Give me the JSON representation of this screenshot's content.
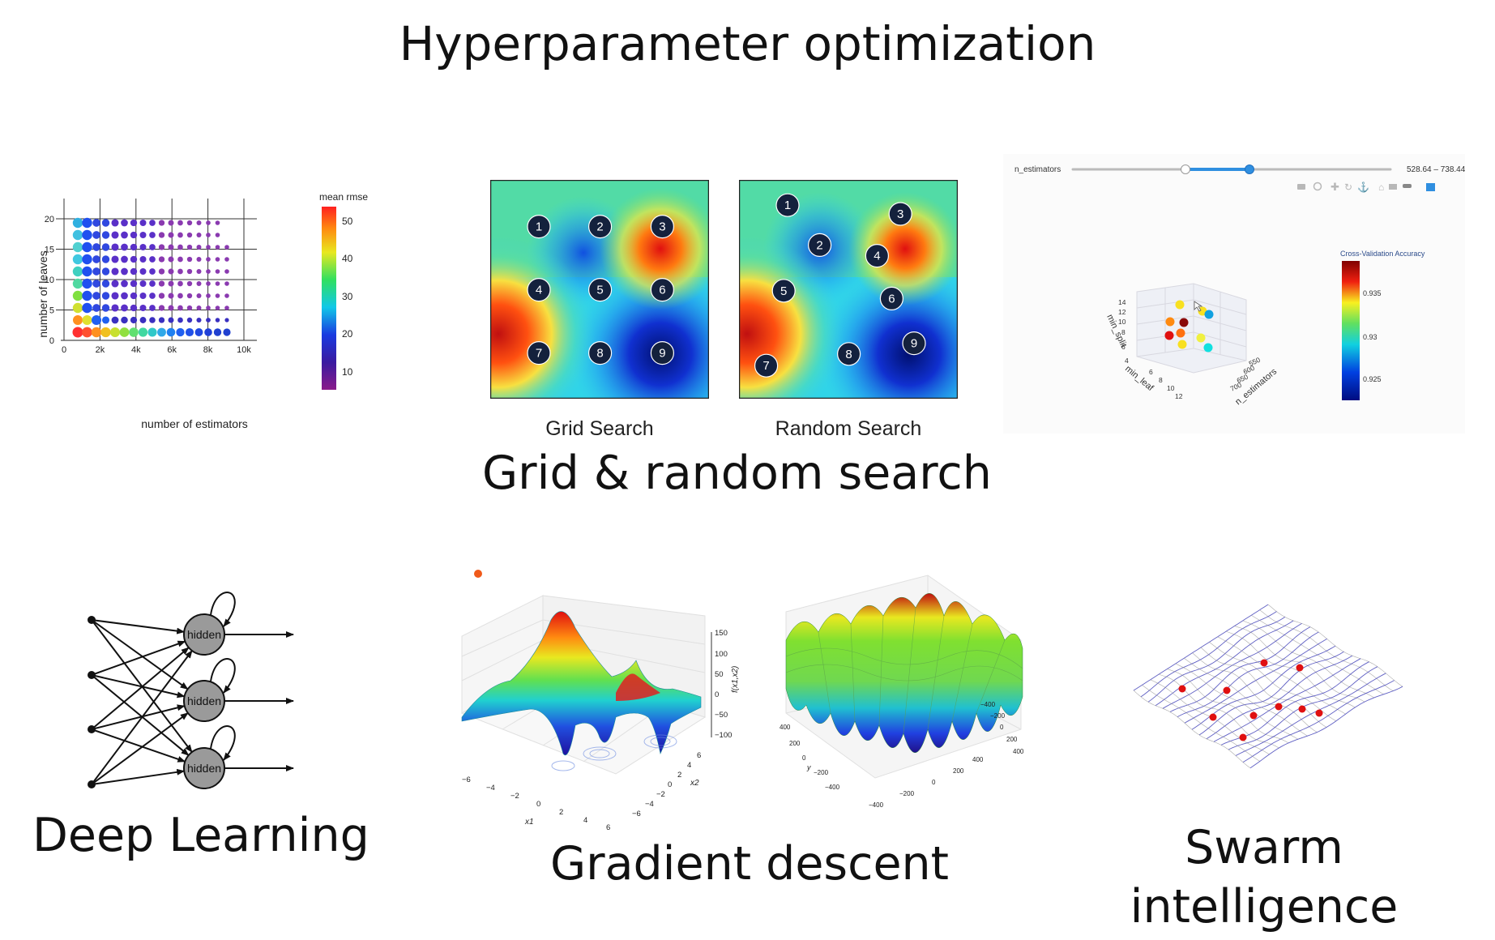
{
  "title": "Hyperparameter optimization",
  "sections": {
    "grid_random": {
      "caption": "Grid & random search"
    },
    "deep_learning": {
      "caption": "Deep Learning"
    },
    "gradient": {
      "caption": "Gradient descent"
    },
    "swarm": {
      "caption_line1": "Swarm",
      "caption_line2": "intelligence"
    }
  },
  "bubble_chart": {
    "xlabel": "number of estimators",
    "ylabel": "number of leaves",
    "xticks": [
      "0",
      "2k",
      "4k",
      "6k",
      "8k",
      "10k"
    ],
    "yticks": [
      "0",
      "5",
      "10",
      "15",
      "20"
    ],
    "colorbar_title": "mean rmse",
    "colorbar_ticks": [
      "50",
      "40",
      "30",
      "20",
      "10"
    ]
  },
  "grid_search": {
    "label": "Grid Search",
    "points": [
      "1",
      "2",
      "3",
      "4",
      "5",
      "6",
      "7",
      "8",
      "9"
    ]
  },
  "random_search": {
    "label": "Random Search",
    "points": [
      "1",
      "2",
      "3",
      "4",
      "5",
      "6",
      "7",
      "8",
      "9"
    ]
  },
  "plotly_3d": {
    "slider_label": "n_estimators",
    "slider_range": "528.64 – 738.44",
    "colorbar_title": "Cross-Validation Accuracy",
    "colorbar_ticks": [
      "0.935",
      "0.93",
      "0.925"
    ],
    "axis_min_split": "min_split",
    "axis_min_leaf": "min_leaf",
    "axis_n_estimators": "n_estimators",
    "min_split_ticks": [
      "14",
      "12",
      "10",
      "8",
      "6",
      "4"
    ],
    "min_leaf_ticks": [
      "6",
      "8",
      "10",
      "12"
    ],
    "n_est_ticks": [
      "550",
      "600",
      "650",
      "700"
    ]
  },
  "neural_net": {
    "node_label": "hidden"
  },
  "surface_left": {
    "zlabel": "f(x1,x2)",
    "zticks": [
      "150",
      "100",
      "50",
      "0",
      "−50",
      "−100"
    ],
    "x1_label": "x1",
    "x2_label": "x2",
    "x1_ticks": [
      "−6",
      "−4",
      "−2",
      "0",
      "2",
      "4",
      "6"
    ],
    "x2_ticks": [
      "6",
      "4",
      "2",
      "0",
      "−2",
      "−4",
      "−6"
    ]
  },
  "surface_right": {
    "y_label": "y",
    "left_ticks": [
      "400",
      "200",
      "0",
      "−200",
      "−400"
    ],
    "mid_ticks": [
      "−400",
      "−200",
      "0",
      "200",
      "400"
    ],
    "right_ticks": [
      "400",
      "200",
      "0",
      "−200",
      "−400"
    ]
  },
  "colors": {
    "dark_point": "#14213d",
    "slider_blue": "#2f8fe0",
    "swarm_red": "#e01010",
    "mesh_blue": "#2a2ab0",
    "orange_dot": "#f05a1a"
  }
}
